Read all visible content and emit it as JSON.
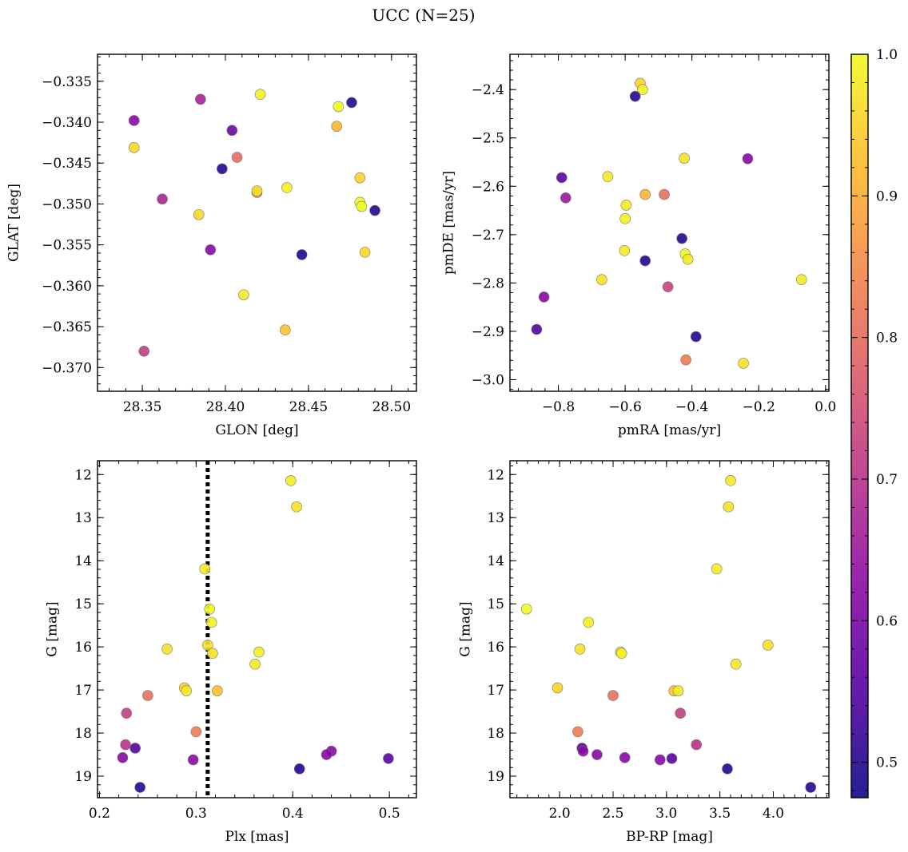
{
  "title": "UCC (N=25)",
  "colorbar": {
    "range": [
      0.475,
      1.0
    ],
    "ticks": [
      0.5,
      0.6,
      0.7,
      0.8,
      0.9,
      1.0
    ],
    "tick_labels": [
      "0.5",
      "0.6",
      "0.7",
      "0.8",
      "0.9",
      "1.0"
    ],
    "colormap": "plasma"
  },
  "chart_data": [
    {
      "id": "glon-glat",
      "type": "scatter",
      "xlabel": "GLON [deg]",
      "ylabel": "GLAT [deg]",
      "xlim": [
        28.323,
        28.515
      ],
      "ylim": [
        -0.3729,
        -0.3317
      ],
      "y_inverted": false,
      "xticks": [
        28.35,
        28.4,
        28.45,
        28.5
      ],
      "xtick_labels": [
        "28.35",
        "28.40",
        "28.45",
        "28.50"
      ],
      "yticks": [
        -0.335,
        -0.34,
        -0.345,
        -0.35,
        -0.355,
        -0.36,
        -0.365,
        -0.37
      ],
      "ytick_labels": [
        "−0.335",
        "−0.340",
        "−0.345",
        "−0.350",
        "−0.355",
        "−0.360",
        "−0.365",
        "−0.370"
      ],
      "points": [
        {
          "x": 28.345,
          "y": -0.3398,
          "c": 0.62
        },
        {
          "x": 28.345,
          "y": -0.3431,
          "c": 0.96
        },
        {
          "x": 28.351,
          "y": -0.368,
          "c": 0.72
        },
        {
          "x": 28.362,
          "y": -0.3494,
          "c": 0.67
        },
        {
          "x": 28.384,
          "y": -0.3513,
          "c": 0.96
        },
        {
          "x": 28.385,
          "y": -0.3372,
          "c": 0.67
        },
        {
          "x": 28.391,
          "y": -0.3556,
          "c": 0.62
        },
        {
          "x": 28.398,
          "y": -0.3457,
          "c": 0.5
        },
        {
          "x": 28.404,
          "y": -0.341,
          "c": 0.58
        },
        {
          "x": 28.407,
          "y": -0.3443,
          "c": 0.8
        },
        {
          "x": 28.411,
          "y": -0.3611,
          "c": 0.98
        },
        {
          "x": 28.419,
          "y": -0.3486,
          "c": 0.85
        },
        {
          "x": 28.419,
          "y": -0.3484,
          "c": 0.97
        },
        {
          "x": 28.421,
          "y": -0.3366,
          "c": 0.99
        },
        {
          "x": 28.436,
          "y": -0.3654,
          "c": 0.93
        },
        {
          "x": 28.437,
          "y": -0.348,
          "c": 0.99
        },
        {
          "x": 28.446,
          "y": -0.3562,
          "c": 0.5
        },
        {
          "x": 28.467,
          "y": -0.3405,
          "c": 0.91
        },
        {
          "x": 28.468,
          "y": -0.3381,
          "c": 1.0
        },
        {
          "x": 28.476,
          "y": -0.3376,
          "c": 0.5
        },
        {
          "x": 28.481,
          "y": -0.3498,
          "c": 1.0
        },
        {
          "x": 28.481,
          "y": -0.3468,
          "c": 0.95
        },
        {
          "x": 28.482,
          "y": -0.3503,
          "c": 1.0
        },
        {
          "x": 28.484,
          "y": -0.3559,
          "c": 0.96
        },
        {
          "x": 28.49,
          "y": -0.3508,
          "c": 0.5
        }
      ]
    },
    {
      "id": "pmra-pmde",
      "type": "scatter",
      "xlabel": "pmRA [mas/yr]",
      "ylabel": "pmDE [mas/yr]",
      "xlim": [
        -0.945,
        0.01
      ],
      "ylim": [
        -3.024,
        -2.327
      ],
      "y_inverted": false,
      "xticks": [
        -0.8,
        -0.6,
        -0.4,
        -0.2,
        0.0
      ],
      "xtick_labels": [
        "−0.8",
        "−0.6",
        "−0.4",
        "−0.2",
        "0.0"
      ],
      "yticks": [
        -2.4,
        -2.5,
        -2.6,
        -2.7,
        -2.8,
        -2.9,
        -3.0
      ],
      "ytick_labels": [
        "−2.4",
        "−2.5",
        "−2.6",
        "−2.7",
        "−2.8",
        "−2.9",
        "−3.0"
      ],
      "points": [
        {
          "x": -0.555,
          "y": -2.387,
          "c": 0.95
        },
        {
          "x": -0.548,
          "y": -2.4,
          "c": 0.99
        },
        {
          "x": -0.57,
          "y": -2.414,
          "c": 0.5
        },
        {
          "x": -0.233,
          "y": -2.543,
          "c": 0.62
        },
        {
          "x": -0.423,
          "y": -2.542,
          "c": 0.97
        },
        {
          "x": -0.79,
          "y": -2.582,
          "c": 0.56
        },
        {
          "x": -0.652,
          "y": -2.58,
          "c": 0.98
        },
        {
          "x": -0.778,
          "y": -2.624,
          "c": 0.65
        },
        {
          "x": -0.54,
          "y": -2.617,
          "c": 0.91
        },
        {
          "x": -0.483,
          "y": -2.617,
          "c": 0.81
        },
        {
          "x": -0.597,
          "y": -2.639,
          "c": 0.98
        },
        {
          "x": -0.6,
          "y": -2.667,
          "c": 0.99
        },
        {
          "x": -0.43,
          "y": -2.708,
          "c": 0.5
        },
        {
          "x": -0.602,
          "y": -2.733,
          "c": 0.98
        },
        {
          "x": -0.42,
          "y": -2.74,
          "c": 1.0
        },
        {
          "x": -0.412,
          "y": -2.751,
          "c": 0.98
        },
        {
          "x": -0.54,
          "y": -2.754,
          "c": 0.5
        },
        {
          "x": -0.67,
          "y": -2.793,
          "c": 0.97
        },
        {
          "x": -0.072,
          "y": -2.793,
          "c": 0.98
        },
        {
          "x": -0.472,
          "y": -2.808,
          "c": 0.73
        },
        {
          "x": -0.843,
          "y": -2.829,
          "c": 0.62
        },
        {
          "x": -0.865,
          "y": -2.896,
          "c": 0.55
        },
        {
          "x": -0.388,
          "y": -2.911,
          "c": 0.5
        },
        {
          "x": -0.418,
          "y": -2.959,
          "c": 0.83
        },
        {
          "x": -0.246,
          "y": -2.966,
          "c": 0.97
        }
      ]
    },
    {
      "id": "plx-g",
      "type": "scatter",
      "xlabel": "Plx [mas]",
      "ylabel": "G [mag]",
      "xlim": [
        0.198,
        0.528
      ],
      "ylim": [
        19.5,
        11.68
      ],
      "y_inverted": true,
      "reference_line": {
        "x": 0.312,
        "style": "dotted"
      },
      "xticks": [
        0.2,
        0.3,
        0.4,
        0.5
      ],
      "xtick_labels": [
        "0.2",
        "0.3",
        "0.4",
        "0.5"
      ],
      "yticks": [
        12,
        13,
        14,
        15,
        16,
        17,
        18,
        19
      ],
      "ytick_labels": [
        "12",
        "13",
        "14",
        "15",
        "16",
        "17",
        "18",
        "19"
      ],
      "points": [
        {
          "x": 0.398,
          "y": 12.14,
          "c": 0.98
        },
        {
          "x": 0.404,
          "y": 12.75,
          "c": 0.97
        },
        {
          "x": 0.309,
          "y": 14.19,
          "c": 0.99
        },
        {
          "x": 0.314,
          "y": 15.12,
          "c": 1.0
        },
        {
          "x": 0.316,
          "y": 15.43,
          "c": 0.99
        },
        {
          "x": 0.312,
          "y": 15.96,
          "c": 0.97
        },
        {
          "x": 0.27,
          "y": 16.05,
          "c": 0.97
        },
        {
          "x": 0.317,
          "y": 16.15,
          "c": 0.97
        },
        {
          "x": 0.365,
          "y": 16.12,
          "c": 0.99
        },
        {
          "x": 0.361,
          "y": 16.4,
          "c": 0.98
        },
        {
          "x": 0.288,
          "y": 16.95,
          "c": 0.95
        },
        {
          "x": 0.29,
          "y": 17.02,
          "c": 0.98
        },
        {
          "x": 0.322,
          "y": 17.02,
          "c": 0.93
        },
        {
          "x": 0.25,
          "y": 17.13,
          "c": 0.81
        },
        {
          "x": 0.228,
          "y": 17.54,
          "c": 0.72
        },
        {
          "x": 0.3,
          "y": 17.97,
          "c": 0.83
        },
        {
          "x": 0.227,
          "y": 18.27,
          "c": 0.7
        },
        {
          "x": 0.237,
          "y": 18.35,
          "c": 0.55
        },
        {
          "x": 0.44,
          "y": 18.42,
          "c": 0.62
        },
        {
          "x": 0.435,
          "y": 18.5,
          "c": 0.62
        },
        {
          "x": 0.224,
          "y": 18.57,
          "c": 0.62
        },
        {
          "x": 0.499,
          "y": 18.59,
          "c": 0.56
        },
        {
          "x": 0.297,
          "y": 18.62,
          "c": 0.62
        },
        {
          "x": 0.407,
          "y": 18.83,
          "c": 0.5
        },
        {
          "x": 0.242,
          "y": 19.26,
          "c": 0.5
        }
      ]
    },
    {
      "id": "bprp-g",
      "type": "scatter",
      "xlabel": "BP-RP [mag]",
      "ylabel": "G [mag]",
      "xlim": [
        1.535,
        4.52
      ],
      "ylim": [
        19.5,
        11.68
      ],
      "y_inverted": true,
      "xticks": [
        2.0,
        2.5,
        3.0,
        3.5,
        4.0
      ],
      "xtick_labels": [
        "2.0",
        "2.5",
        "3.0",
        "3.5",
        "4.0"
      ],
      "yticks": [
        12,
        13,
        14,
        15,
        16,
        17,
        18,
        19
      ],
      "ytick_labels": [
        "12",
        "13",
        "14",
        "15",
        "16",
        "17",
        "18",
        "19"
      ],
      "points": [
        {
          "x": 3.6,
          "y": 12.14,
          "c": 0.98
        },
        {
          "x": 3.58,
          "y": 12.75,
          "c": 0.97
        },
        {
          "x": 3.47,
          "y": 14.19,
          "c": 0.99
        },
        {
          "x": 1.69,
          "y": 15.12,
          "c": 1.0
        },
        {
          "x": 2.27,
          "y": 15.43,
          "c": 0.99
        },
        {
          "x": 3.95,
          "y": 15.96,
          "c": 0.97
        },
        {
          "x": 2.19,
          "y": 16.05,
          "c": 0.97
        },
        {
          "x": 2.57,
          "y": 16.12,
          "c": 0.97
        },
        {
          "x": 2.58,
          "y": 16.15,
          "c": 0.99
        },
        {
          "x": 3.65,
          "y": 16.4,
          "c": 0.98
        },
        {
          "x": 1.98,
          "y": 16.95,
          "c": 0.95
        },
        {
          "x": 3.07,
          "y": 17.02,
          "c": 0.93
        },
        {
          "x": 3.11,
          "y": 17.02,
          "c": 0.98
        },
        {
          "x": 2.5,
          "y": 17.13,
          "c": 0.81
        },
        {
          "x": 3.13,
          "y": 17.54,
          "c": 0.72
        },
        {
          "x": 2.17,
          "y": 17.97,
          "c": 0.83
        },
        {
          "x": 2.21,
          "y": 18.35,
          "c": 0.55
        },
        {
          "x": 2.22,
          "y": 18.42,
          "c": 0.62
        },
        {
          "x": 3.28,
          "y": 18.27,
          "c": 0.7
        },
        {
          "x": 2.35,
          "y": 18.5,
          "c": 0.62
        },
        {
          "x": 2.61,
          "y": 18.57,
          "c": 0.62
        },
        {
          "x": 3.05,
          "y": 18.59,
          "c": 0.56
        },
        {
          "x": 2.94,
          "y": 18.62,
          "c": 0.62
        },
        {
          "x": 3.57,
          "y": 18.83,
          "c": 0.5
        },
        {
          "x": 4.35,
          "y": 19.26,
          "c": 0.5
        }
      ]
    }
  ]
}
